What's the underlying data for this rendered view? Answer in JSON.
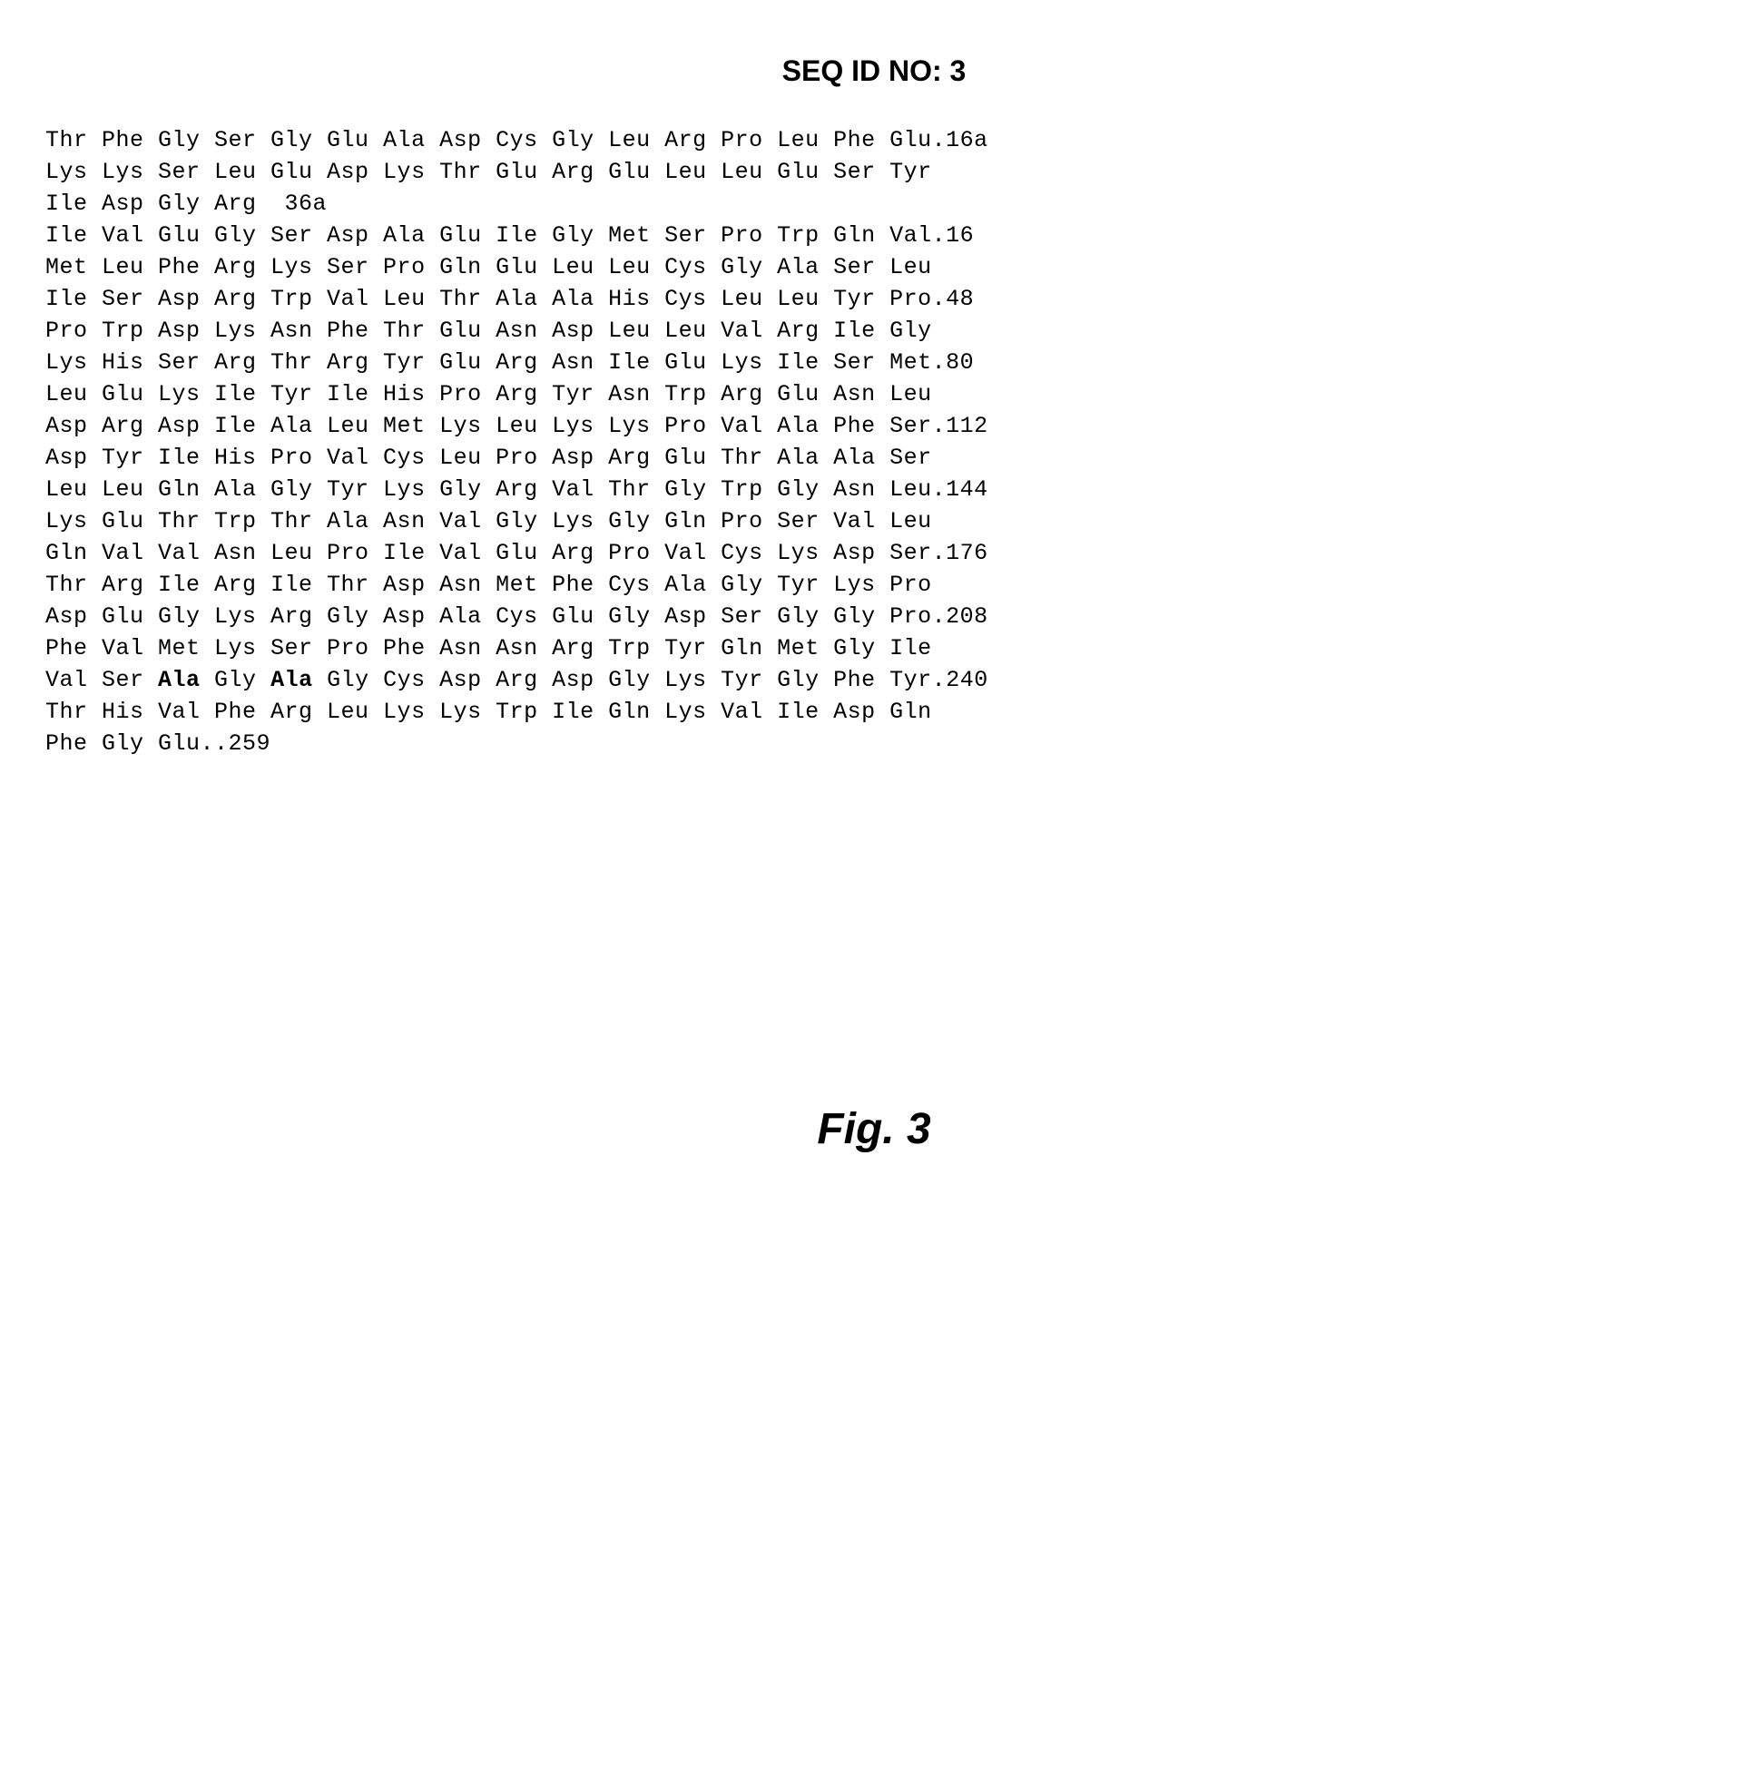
{
  "title": "SEQ ID NO: 3",
  "fig_label": "Fig. 3",
  "sequence_lines": [
    "Thr Phe Gly Ser Gly Glu Ala Asp Cys Gly Leu Arg Pro Leu Phe Glu.16a",
    "Lys Lys Ser Leu Glu Asp Lys Thr Glu Arg Glu Leu Leu Glu Ser Tyr",
    "Ile Asp Gly Arg  36a",
    "Ile Val Glu Gly Ser Asp Ala Glu Ile Gly Met Ser Pro Trp Gln Val.16",
    "Met Leu Phe Arg Lys Ser Pro Gln Glu Leu Leu Cys Gly Ala Ser Leu",
    "Ile Ser Asp Arg Trp Val Leu Thr Ala Ala His Cys Leu Leu Tyr Pro.48",
    "Pro Trp Asp Lys Asn Phe Thr Glu Asn Asp Leu Leu Val Arg Ile Gly",
    "Lys His Ser Arg Thr Arg Tyr Glu Arg Asn Ile Glu Lys Ile Ser Met.80",
    "Leu Glu Lys Ile Tyr Ile His Pro Arg Tyr Asn Trp Arg Glu Asn Leu",
    "Asp Arg Asp Ile Ala Leu Met Lys Leu Lys Lys Pro Val Ala Phe Ser.112",
    "Asp Tyr Ile His Pro Val Cys Leu Pro Asp Arg Glu Thr Ala Ala Ser",
    "Leu Leu Gln Ala Gly Tyr Lys Gly Arg Val Thr Gly Trp Gly Asn Leu.144",
    "Lys Glu Thr Trp Thr Ala Asn Val Gly Lys Gly Gln Pro Ser Val Leu",
    "Gln Val Val Asn Leu Pro Ile Val Glu Arg Pro Val Cys Lys Asp Ser.176",
    "Thr Arg Ile Arg Ile Thr Asp Asn Met Phe Cys Ala Gly Tyr Lys Pro",
    "Asp Glu Gly Lys Arg Gly Asp Ala Cys Glu Gly Asp Ser Gly Gly Pro.208",
    "Phe Val Met Lys Ser Pro Phe Asn Asn Arg Trp Tyr Gln Met Gly Ile"
  ],
  "line_240": {
    "prefix": "Val Ser ",
    "bold1": "Ala",
    "mid": " Gly ",
    "bold2": "Ala",
    "suffix": " Gly Cys Asp Arg Asp Gly Lys Tyr Gly Phe Tyr.240"
  },
  "line_241": "Thr His Val Phe Arg Leu Lys Lys Trp Ile Gln Lys Val Ile Asp Gln",
  "line_259": "Phe Gly Glu..259",
  "styling": {
    "background_color": "#ffffff",
    "text_color": "#000000",
    "mono_font": "Courier New",
    "title_font": "Arial",
    "title_fontsize": 32,
    "sequence_fontsize": 25,
    "fig_label_fontsize": 48,
    "line_height": 1.4
  }
}
